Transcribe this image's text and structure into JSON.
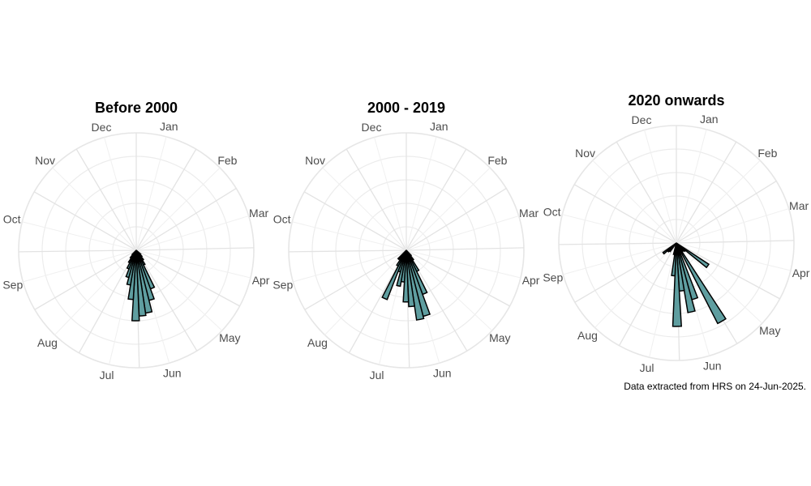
{
  "chart_data": [
    {
      "type": "bar",
      "polar": true,
      "title": "Before 2000",
      "month_labels": [
        "Jan",
        "Feb",
        "Mar",
        "Apr",
        "May",
        "Jun",
        "Jul",
        "Aug",
        "Sep",
        "Oct",
        "Nov",
        "Dec"
      ],
      "radial_max": 1.0,
      "grid": true,
      "fill_color": "#5f9ea0",
      "edge_color": "#000000",
      "bars": [
        {
          "day": 135,
          "value": 0.05
        },
        {
          "day": 141,
          "value": 0.07
        },
        {
          "day": 147,
          "value": 0.1
        },
        {
          "day": 153,
          "value": 0.14
        },
        {
          "day": 159,
          "value": 0.35
        },
        {
          "day": 165,
          "value": 0.44
        },
        {
          "day": 171,
          "value": 0.54
        },
        {
          "day": 177,
          "value": 0.56
        },
        {
          "day": 183,
          "value": 0.6
        },
        {
          "day": 189,
          "value": 0.42
        },
        {
          "day": 195,
          "value": 0.3
        },
        {
          "day": 201,
          "value": 0.24
        },
        {
          "day": 207,
          "value": 0.17
        },
        {
          "day": 213,
          "value": 0.12
        },
        {
          "day": 219,
          "value": 0.08
        },
        {
          "day": 225,
          "value": 0.05
        }
      ]
    },
    {
      "type": "bar",
      "polar": true,
      "title": "2000 - 2019",
      "month_labels": [
        "Jan",
        "Feb",
        "Mar",
        "Apr",
        "May",
        "Jun",
        "Jul",
        "Aug",
        "Sep",
        "Oct",
        "Nov",
        "Dec"
      ],
      "radial_max": 1.0,
      "grid": true,
      "fill_color": "#5f9ea0",
      "edge_color": "#000000",
      "bars": [
        {
          "day": 141,
          "value": 0.06
        },
        {
          "day": 147,
          "value": 0.1
        },
        {
          "day": 153,
          "value": 0.2
        },
        {
          "day": 159,
          "value": 0.4
        },
        {
          "day": 165,
          "value": 0.58
        },
        {
          "day": 171,
          "value": 0.6
        },
        {
          "day": 177,
          "value": 0.48
        },
        {
          "day": 183,
          "value": 0.44
        },
        {
          "day": 189,
          "value": 0.27
        },
        {
          "day": 195,
          "value": 0.31
        },
        {
          "day": 201,
          "value": 0.19
        },
        {
          "day": 207,
          "value": 0.45
        },
        {
          "day": 213,
          "value": 0.15
        },
        {
          "day": 219,
          "value": 0.06
        },
        {
          "day": 225,
          "value": 0.1
        }
      ]
    },
    {
      "type": "bar",
      "polar": true,
      "title": "2020 onwards",
      "month_labels": [
        "Jan",
        "Feb",
        "Mar",
        "Apr",
        "May",
        "Jun",
        "Jul",
        "Aug",
        "Sep",
        "Oct",
        "Nov",
        "Dec"
      ],
      "radial_max": 1.0,
      "grid": true,
      "fill_color": "#5f9ea0",
      "edge_color": "#000000",
      "bars": [
        {
          "day": 128,
          "value": 0.33
        },
        {
          "day": 134,
          "value": 0.1
        },
        {
          "day": 140,
          "value": 0.09
        },
        {
          "day": 152,
          "value": 0.77
        },
        {
          "day": 164,
          "value": 0.5
        },
        {
          "day": 170,
          "value": 0.6
        },
        {
          "day": 176,
          "value": 0.41
        },
        {
          "day": 182,
          "value": 0.71
        },
        {
          "day": 188,
          "value": 0.28
        },
        {
          "day": 194,
          "value": 0.1
        },
        {
          "day": 222,
          "value": 0.09
        },
        {
          "day": 228,
          "value": 0.1
        },
        {
          "day": 235,
          "value": 0.14
        }
      ]
    }
  ],
  "caption": "Data extracted from HRS on 24-Jun-2025."
}
